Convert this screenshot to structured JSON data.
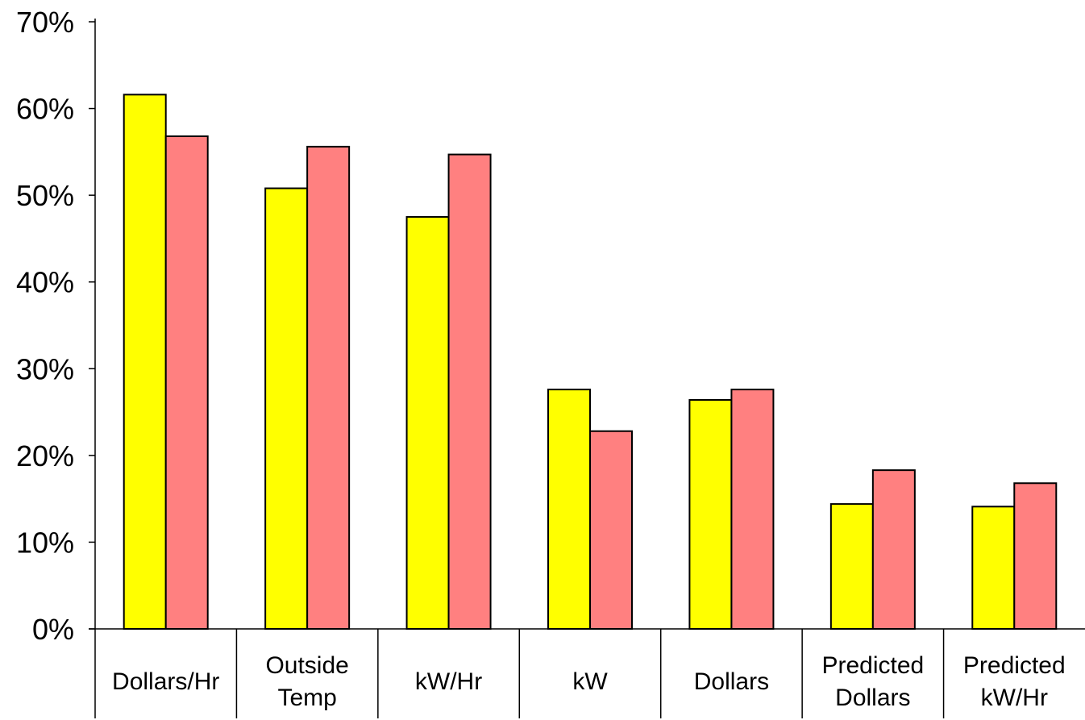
{
  "chart_data": {
    "type": "bar",
    "title": "",
    "xlabel": "",
    "ylabel": "",
    "categories": [
      [
        "Dollars/Hr"
      ],
      [
        "Outside",
        "Temp"
      ],
      [
        "kW/Hr"
      ],
      [
        "kW"
      ],
      [
        "Dollars"
      ],
      [
        "Predicted",
        "Dollars"
      ],
      [
        "Predicted",
        "kW/Hr"
      ]
    ],
    "series": [
      {
        "color": "#ffff00",
        "values": [
          61.6,
          50.8,
          47.5,
          27.6,
          26.4,
          14.4,
          14.1
        ]
      },
      {
        "color": "#ff8080",
        "values": [
          56.8,
          55.6,
          54.7,
          22.8,
          27.6,
          18.3,
          16.8
        ]
      }
    ],
    "ylim": [
      0,
      70
    ],
    "yticks": [
      0,
      10,
      20,
      30,
      40,
      50,
      60,
      70
    ],
    "ytick_format": "%",
    "grid": false,
    "legend": "none"
  }
}
